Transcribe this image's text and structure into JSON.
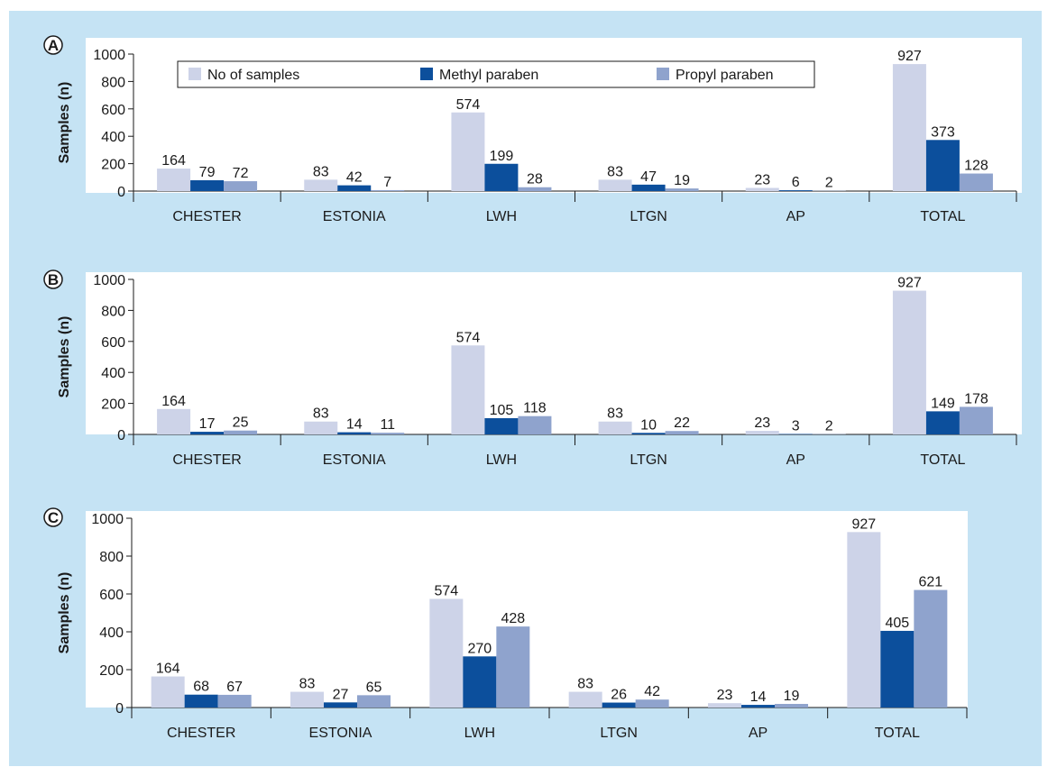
{
  "chart_data": [
    {
      "type": "bar",
      "panel_label": "A",
      "ylabel": "Samples (n)",
      "ylim": [
        0,
        1000
      ],
      "yticks": [
        0,
        200,
        400,
        600,
        800,
        1000
      ],
      "categories": [
        "CHESTER",
        "ESTONIA",
        "LWH",
        "LTGN",
        "AP",
        "TOTAL"
      ],
      "legend_position": "top",
      "series": [
        {
          "name": "No of samples",
          "color": "#cdd3e8",
          "values": [
            164,
            83,
            574,
            83,
            23,
            927
          ]
        },
        {
          "name": "Methyl paraben",
          "color": "#0c4f9c",
          "values": [
            79,
            42,
            199,
            47,
            6,
            373
          ]
        },
        {
          "name": "Propyl paraben",
          "color": "#8fa3cd",
          "values": [
            72,
            7,
            28,
            19,
            2,
            128
          ]
        }
      ]
    },
    {
      "type": "bar",
      "panel_label": "B",
      "ylabel": "Samples (n)",
      "ylim": [
        0,
        1000
      ],
      "yticks": [
        0,
        200,
        400,
        600,
        800,
        1000
      ],
      "categories": [
        "CHESTER",
        "ESTONIA",
        "LWH",
        "LTGN",
        "AP",
        "TOTAL"
      ],
      "series": [
        {
          "color": "#cdd3e8",
          "values": [
            164,
            83,
            574,
            83,
            23,
            927
          ]
        },
        {
          "color": "#0c4f9c",
          "values": [
            17,
            14,
            105,
            10,
            3,
            149
          ]
        },
        {
          "color": "#8fa3cd",
          "values": [
            25,
            11,
            118,
            22,
            2,
            178
          ]
        }
      ]
    },
    {
      "type": "bar",
      "panel_label": "C",
      "ylabel": "Samples (n)",
      "ylim": [
        0,
        1000
      ],
      "yticks": [
        0,
        200,
        400,
        600,
        800,
        1000
      ],
      "categories": [
        "CHESTER",
        "ESTONIA",
        "LWH",
        "LTGN",
        "AP",
        "TOTAL"
      ],
      "series": [
        {
          "color": "#cdd3e8",
          "values": [
            164,
            83,
            574,
            83,
            23,
            927
          ]
        },
        {
          "color": "#0c4f9c",
          "values": [
            68,
            27,
            270,
            26,
            14,
            405
          ]
        },
        {
          "color": "#8fa3cd",
          "values": [
            67,
            65,
            428,
            42,
            19,
            621
          ]
        }
      ]
    }
  ],
  "colors": {
    "figure_background": "#c5e3f4",
    "plot_background": "#ffffff"
  }
}
